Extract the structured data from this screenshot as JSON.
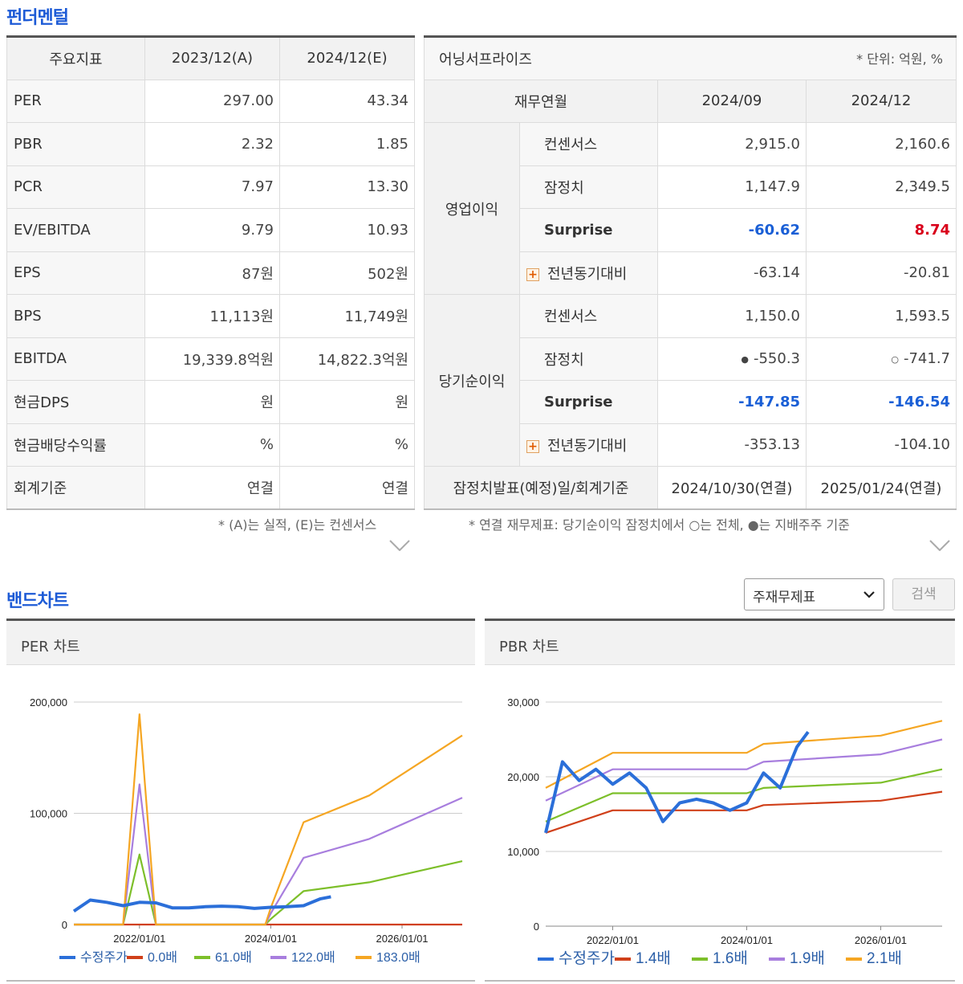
{
  "fundamental": {
    "title": "펀더멘털",
    "headers": [
      "주요지표",
      "2023/12(A)",
      "2024/12(E)"
    ],
    "rows": [
      {
        "label": "PER",
        "a": "297.00",
        "e": "43.34"
      },
      {
        "label": "PBR",
        "a": "2.32",
        "e": "1.85"
      },
      {
        "label": "PCR",
        "a": "7.97",
        "e": "13.30"
      },
      {
        "label": "EV/EBITDA",
        "a": "9.79",
        "e": "10.93"
      },
      {
        "label": "EPS",
        "a": "87원",
        "e": "502원"
      },
      {
        "label": "BPS",
        "a": "11,113원",
        "e": "11,749원"
      },
      {
        "label": "EBITDA",
        "a": "19,339.8억원",
        "e": "14,822.3억원"
      },
      {
        "label": "현금DPS",
        "a": "원",
        "e": "원"
      },
      {
        "label": "현금배당수익률",
        "a": "%",
        "e": "%"
      },
      {
        "label": "회계기준",
        "a": "연결",
        "e": "연결"
      }
    ],
    "note": "* (A)는 실적, (E)는 컨센서스"
  },
  "earnings": {
    "title": "어닝서프라이즈",
    "unit": "* 단위: 억원, %",
    "headers": [
      "재무연월",
      "2024/09",
      "2024/12"
    ],
    "groups": [
      {
        "label": "영업이익",
        "rows": [
          {
            "label": "컨센서스",
            "v1": "2,915.0",
            "v2": "2,160.6"
          },
          {
            "label": "잠정치",
            "v1": "1,147.9",
            "v2": "2,349.5"
          },
          {
            "label": "Surprise",
            "v1": "-60.62",
            "v2": "8.74"
          },
          {
            "label": "전년동기대비",
            "v1": "-63.14",
            "v2": "-20.81"
          }
        ]
      },
      {
        "label": "당기순이익",
        "rows": [
          {
            "label": "컨센서스",
            "v1": "1,150.0",
            "v2": "1,593.5"
          },
          {
            "label": "잠정치",
            "v1": "-550.3",
            "v2": "-741.7",
            "m1": "●",
            "m2": "○"
          },
          {
            "label": "Surprise",
            "v1": "-147.85",
            "v2": "-146.54"
          },
          {
            "label": "전년동기대비",
            "v1": "-353.13",
            "v2": "-104.10"
          }
        ]
      }
    ],
    "footer": {
      "label": "잠정치발표(예정)일/회계기준",
      "v1": "2024/10/30(연결)",
      "v2": "2025/01/24(연결)"
    },
    "note": "* 연결 재무제표: 당기순이익 잠정치에서 ○는 전체, ●는 지배주주 기준"
  },
  "band": {
    "title": "밴드차트",
    "select_value": "주재무제표",
    "search_label": "검색"
  },
  "chart_data": [
    {
      "type": "line",
      "title": "PER 차트",
      "x_ticks": [
        "2022/01/01",
        "2024/01/01",
        "2026/01/01"
      ],
      "y_ticks": [
        "200,000",
        "100,000",
        "0"
      ],
      "ylim": [
        0,
        200000
      ],
      "x_domain": [
        "2021/01",
        "2026/12"
      ],
      "grid": "horizontal",
      "legend": "bottom",
      "series": [
        {
          "name": "수정주가",
          "color": "#2b6fd9",
          "x": [
            "2021/01",
            "2021/04",
            "2021/07",
            "2021/10",
            "2022/01",
            "2022/04",
            "2022/07",
            "2022/10",
            "2023/01",
            "2023/04",
            "2023/07",
            "2023/10",
            "2024/01",
            "2024/04",
            "2024/07",
            "2024/10",
            "2024/12"
          ],
          "values": [
            12000,
            22000,
            20000,
            17000,
            20000,
            19500,
            15000,
            15000,
            16000,
            16500,
            16000,
            14500,
            15500,
            16000,
            17000,
            23000,
            25000
          ]
        },
        {
          "name": "0.0배",
          "color": "#d0401a",
          "x": [
            "2021/01",
            "2026/12"
          ],
          "values": [
            0,
            0
          ]
        },
        {
          "name": "61.0배",
          "color": "#7dbf2a",
          "x": [
            "2021/01",
            "2021/10",
            "2022/01",
            "2022/04",
            "2023/12",
            "2024/01",
            "2024/07",
            "2025/07",
            "2026/12"
          ],
          "values": [
            0,
            0,
            63000,
            0,
            0,
            5000,
            30000,
            38000,
            57000
          ]
        },
        {
          "name": "122.0배",
          "color": "#a87ede",
          "x": [
            "2021/01",
            "2021/10",
            "2022/01",
            "2022/04",
            "2023/12",
            "2024/01",
            "2024/07",
            "2025/07",
            "2026/12"
          ],
          "values": [
            0,
            0,
            126000,
            0,
            0,
            10000,
            60000,
            77000,
            114000
          ]
        },
        {
          "name": "183.0배",
          "color": "#f5a623",
          "x": [
            "2021/01",
            "2021/10",
            "2022/01",
            "2022/04",
            "2023/12",
            "2024/01",
            "2024/07",
            "2025/07",
            "2026/12"
          ],
          "values": [
            0,
            0,
            189000,
            0,
            0,
            15000,
            92000,
            116000,
            170000
          ]
        }
      ]
    },
    {
      "type": "line",
      "title": "PBR 차트",
      "x_ticks": [
        "2022/01/01",
        "2024/01/01",
        "2026/01/01"
      ],
      "y_ticks": [
        "30,000",
        "20,000",
        "10,000",
        "0"
      ],
      "ylim": [
        0,
        30000
      ],
      "x_domain": [
        "2021/01",
        "2026/12"
      ],
      "grid": "horizontal",
      "legend": "bottom",
      "series": [
        {
          "name": "수정주가",
          "color": "#2b6fd9",
          "x": [
            "2021/01",
            "2021/04",
            "2021/07",
            "2021/10",
            "2022/01",
            "2022/04",
            "2022/07",
            "2022/10",
            "2023/01",
            "2023/04",
            "2023/07",
            "2023/10",
            "2024/01",
            "2024/04",
            "2024/07",
            "2024/10",
            "2024/12"
          ],
          "values": [
            12500,
            22000,
            19500,
            21000,
            19000,
            20500,
            18500,
            14000,
            16500,
            17000,
            16500,
            15500,
            16500,
            20500,
            18500,
            24000,
            26000
          ]
        },
        {
          "name": "1.4배",
          "color": "#d0401a",
          "x": [
            "2021/01",
            "2022/01",
            "2024/01",
            "2024/04",
            "2026/01",
            "2026/12"
          ],
          "values": [
            12500,
            15500,
            15500,
            16200,
            16800,
            18000
          ]
        },
        {
          "name": "1.6배",
          "color": "#7dbf2a",
          "x": [
            "2021/01",
            "2022/01",
            "2024/01",
            "2024/04",
            "2026/01",
            "2026/12"
          ],
          "values": [
            14000,
            17800,
            17800,
            18500,
            19200,
            21000
          ]
        },
        {
          "name": "1.9배",
          "color": "#a87ede",
          "x": [
            "2021/01",
            "2022/01",
            "2024/01",
            "2024/04",
            "2026/01",
            "2026/12"
          ],
          "values": [
            16800,
            21000,
            21000,
            22000,
            23000,
            25000
          ]
        },
        {
          "name": "2.1배",
          "color": "#f5a623",
          "x": [
            "2021/01",
            "2022/01",
            "2024/01",
            "2024/04",
            "2026/01",
            "2026/12"
          ],
          "values": [
            18500,
            23200,
            23200,
            24400,
            25500,
            27500
          ]
        }
      ]
    }
  ]
}
